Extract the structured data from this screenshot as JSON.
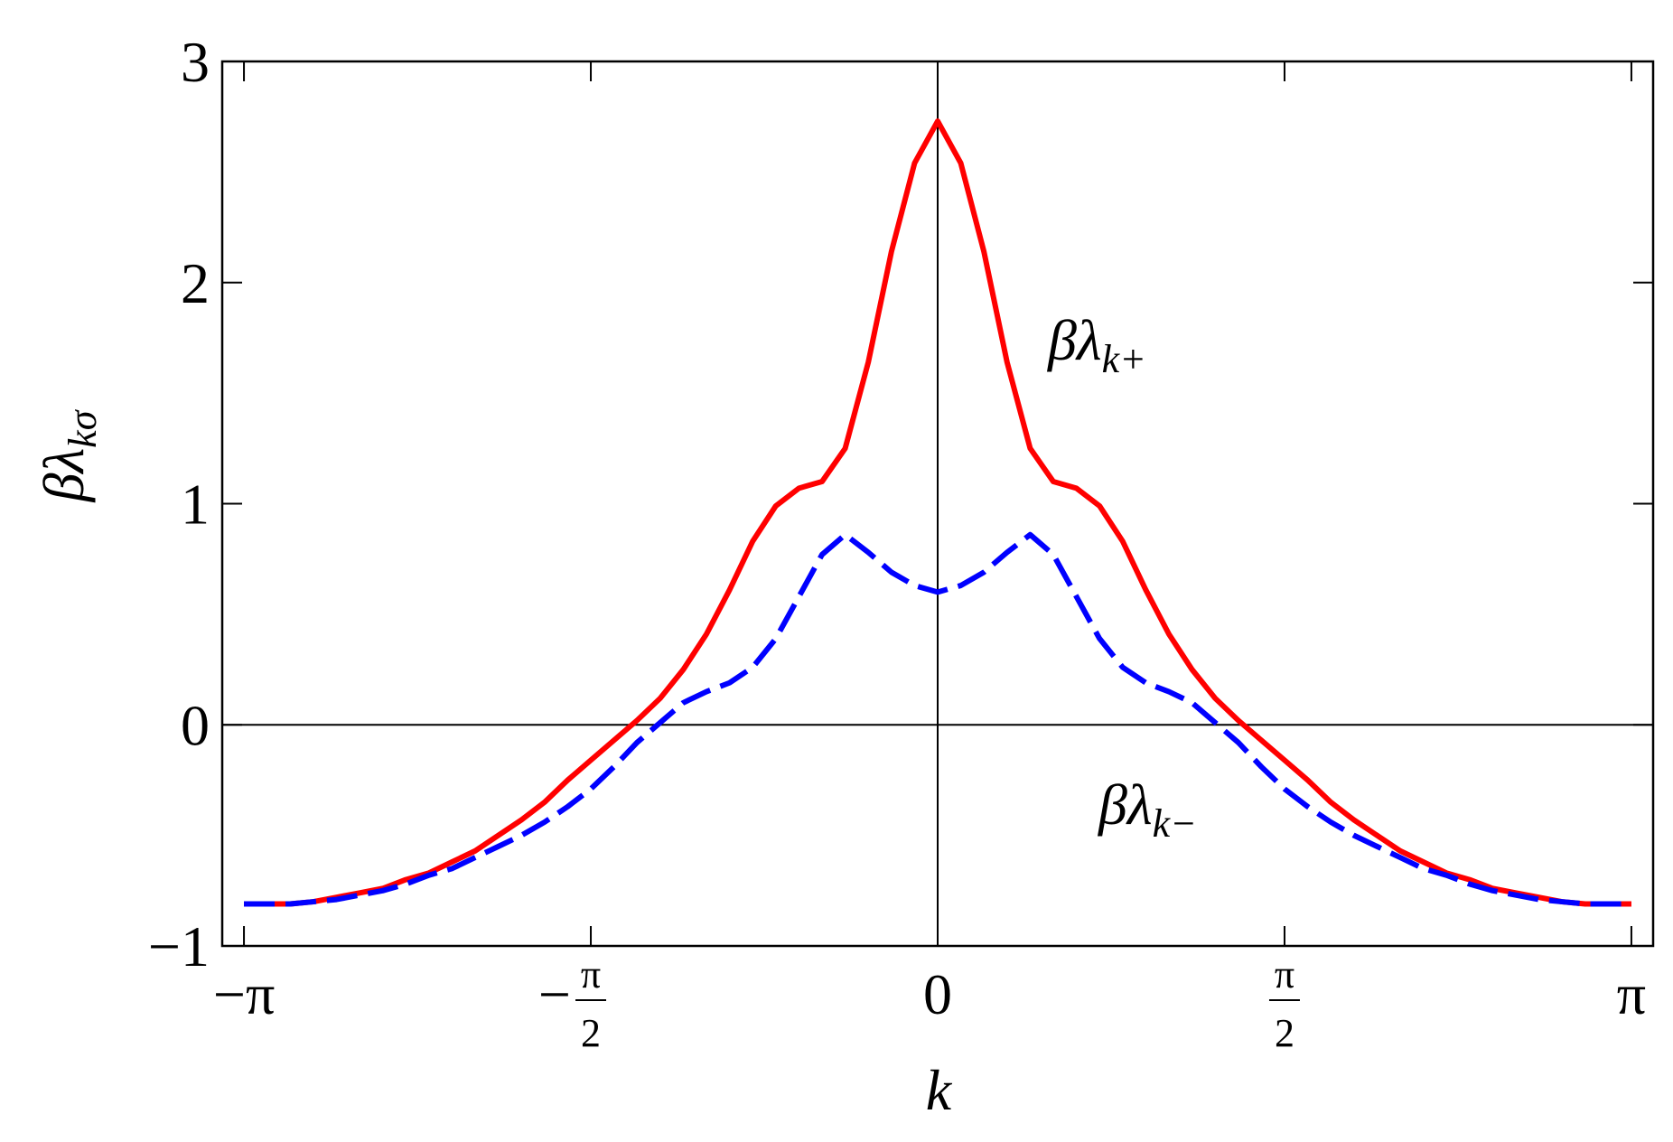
{
  "chart_data": {
    "type": "line",
    "x_label": "k",
    "y_label": {
      "text": "βλ",
      "sub": "kσ"
    },
    "annotations": [
      {
        "text": "βλ",
        "sub": "k+",
        "color": "#ff0000"
      },
      {
        "text": "βλ",
        "sub": "k−",
        "color": "#0000ff"
      }
    ],
    "x": [
      -3.1416,
      -3.0369,
      -2.9322,
      -2.8274,
      -2.7227,
      -2.618,
      -2.5133,
      -2.4086,
      -2.3038,
      -2.1991,
      -2.0944,
      -1.9897,
      -1.885,
      -1.7802,
      -1.6755,
      -1.5708,
      -1.4661,
      -1.3614,
      -1.2566,
      -1.1519,
      -1.0472,
      -0.9425,
      -0.8378,
      -0.733,
      -0.6283,
      -0.5236,
      -0.4189,
      -0.3142,
      -0.2094,
      -0.1047,
      0,
      0.1047,
      0.2094,
      0.3142,
      0.4189,
      0.5236,
      0.6283,
      0.733,
      0.8378,
      0.9425,
      1.0472,
      1.1519,
      1.2566,
      1.3614,
      1.4661,
      1.5708,
      1.6755,
      1.7802,
      1.885,
      1.9897,
      2.0944,
      2.1991,
      2.3038,
      2.4086,
      2.5133,
      2.618,
      2.7227,
      2.8274,
      2.9322,
      3.0369,
      3.1416
    ],
    "series": [
      {
        "name": "βλk+",
        "color": "#ff0000",
        "linestyle": "solid",
        "values": [
          -0.81,
          -0.81,
          -0.81,
          -0.8,
          -0.78,
          -0.76,
          -0.74,
          -0.7,
          -0.67,
          -0.62,
          -0.57,
          -0.5,
          -0.43,
          -0.35,
          -0.25,
          -0.16,
          -0.07,
          0.02,
          0.12,
          0.25,
          0.41,
          0.61,
          0.83,
          0.99,
          1.07,
          1.1,
          1.25,
          1.64,
          2.14,
          2.54,
          2.73,
          2.54,
          2.14,
          1.64,
          1.25,
          1.1,
          1.07,
          0.99,
          0.83,
          0.61,
          0.41,
          0.25,
          0.12,
          0.02,
          -0.07,
          -0.16,
          -0.25,
          -0.35,
          -0.43,
          -0.5,
          -0.57,
          -0.62,
          -0.67,
          -0.7,
          -0.74,
          -0.76,
          -0.78,
          -0.8,
          -0.81,
          -0.81,
          -0.81
        ]
      },
      {
        "name": "βλk−",
        "color": "#0000ff",
        "linestyle": "dashed",
        "values": [
          -0.81,
          -0.81,
          -0.81,
          -0.8,
          -0.79,
          -0.77,
          -0.75,
          -0.72,
          -0.68,
          -0.65,
          -0.6,
          -0.55,
          -0.5,
          -0.44,
          -0.37,
          -0.29,
          -0.19,
          -0.08,
          0.01,
          0.1,
          0.15,
          0.19,
          0.26,
          0.39,
          0.58,
          0.77,
          0.86,
          0.78,
          0.69,
          0.63,
          0.6,
          0.63,
          0.69,
          0.78,
          0.86,
          0.77,
          0.58,
          0.39,
          0.26,
          0.19,
          0.15,
          0.1,
          0.01,
          -0.08,
          -0.19,
          -0.29,
          -0.37,
          -0.44,
          -0.5,
          -0.55,
          -0.6,
          -0.65,
          -0.68,
          -0.72,
          -0.75,
          -0.77,
          -0.79,
          -0.8,
          -0.81,
          -0.81,
          -0.81
        ]
      }
    ],
    "xlim": [
      -3.24,
      3.24
    ],
    "ylim": [
      -1,
      3
    ],
    "xticks": [
      {
        "value": -3.1416,
        "label": "−π"
      },
      {
        "value": -1.5708,
        "label": "−π/2"
      },
      0,
      {
        "value": 1.5708,
        "label": "π/2"
      },
      {
        "value": 3.1416,
        "label": "π"
      }
    ],
    "yticks": [
      {
        "value": -1,
        "label": "−1"
      },
      0,
      1,
      2,
      3
    ],
    "legend": false
  }
}
